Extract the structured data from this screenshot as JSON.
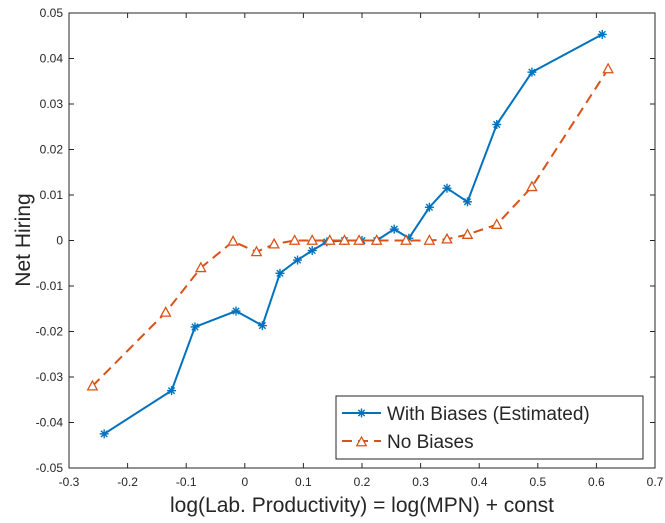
{
  "chart_data": {
    "type": "line",
    "title": "",
    "xlabel": "log(Lab. Productivity) = log(MPN) + const",
    "ylabel": "Net Hiring",
    "xlim": [
      -0.3,
      0.7
    ],
    "ylim": [
      -0.05,
      0.05
    ],
    "xticks": [
      -0.3,
      -0.2,
      -0.1,
      0,
      0.1,
      0.2,
      0.3,
      0.4,
      0.5,
      0.6,
      0.7
    ],
    "yticks": [
      -0.05,
      -0.04,
      -0.03,
      -0.02,
      -0.01,
      0,
      0.01,
      0.02,
      0.03,
      0.04,
      0.05
    ],
    "xtick_labels": [
      "-0.3",
      "-0.2",
      "-0.1",
      "0",
      "0.1",
      "0.2",
      "0.3",
      "0.4",
      "0.5",
      "0.6",
      "0.7"
    ],
    "ytick_labels": [
      "-0.05",
      "-0.04",
      "-0.03",
      "-0.02",
      "-0.01",
      "0",
      "0.01",
      "0.02",
      "0.03",
      "0.04",
      "0.05"
    ],
    "grid": false,
    "legend_position": "bottom-right",
    "series": [
      {
        "name": "With Biases (Estimated)",
        "color": "#0072BD",
        "line_style": "solid",
        "marker": "asterisk",
        "x": [
          -0.24,
          -0.125,
          -0.085,
          -0.015,
          0.03,
          0.06,
          0.09,
          0.115,
          0.14,
          0.17,
          0.2,
          0.225,
          0.255,
          0.28,
          0.315,
          0.345,
          0.38,
          0.43,
          0.49,
          0.61
        ],
        "y": [
          -0.0425,
          -0.033,
          -0.019,
          -0.0155,
          -0.0187,
          -0.0072,
          -0.0043,
          -0.0022,
          -0.0003,
          0.0,
          0.0,
          0.0,
          0.0025,
          0.0005,
          0.0073,
          0.0115,
          0.0085,
          0.0255,
          0.037,
          0.0453
        ]
      },
      {
        "name": "No Biases",
        "color": "#D95319",
        "line_style": "dashed",
        "marker": "triangle",
        "x": [
          -0.26,
          -0.135,
          -0.075,
          -0.02,
          0.02,
          0.05,
          0.085,
          0.115,
          0.145,
          0.17,
          0.195,
          0.225,
          0.275,
          0.315,
          0.345,
          0.38,
          0.43,
          0.49,
          0.62
        ],
        "y": [
          -0.032,
          -0.0158,
          -0.006,
          -0.0002,
          -0.0025,
          -0.0008,
          0.0,
          0.0,
          0.0,
          0.0,
          0.0,
          0.0,
          0.0,
          0.0,
          0.0003,
          0.0013,
          0.0035,
          0.0118,
          0.0377
        ]
      }
    ]
  }
}
